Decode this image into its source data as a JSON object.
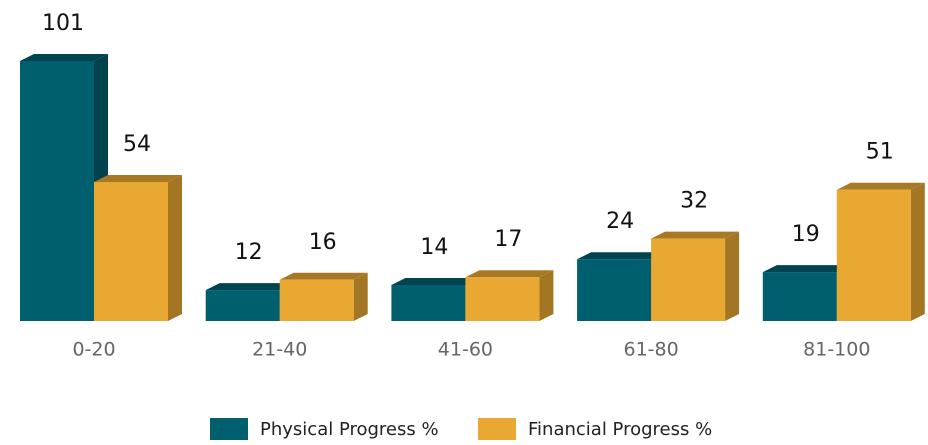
{
  "chart_data": {
    "type": "bar3d",
    "categories": [
      "0-20",
      "21-40",
      "41-60",
      "61-80",
      "81-100"
    ],
    "series": [
      {
        "name": "Physical Progress %",
        "color": "#005f6e",
        "values": [
          101,
          12,
          14,
          24,
          19
        ]
      },
      {
        "name": "Financial Progress %",
        "color": "#e8a832",
        "values": [
          54,
          16,
          17,
          32,
          51
        ]
      }
    ],
    "legend": "bottom"
  }
}
